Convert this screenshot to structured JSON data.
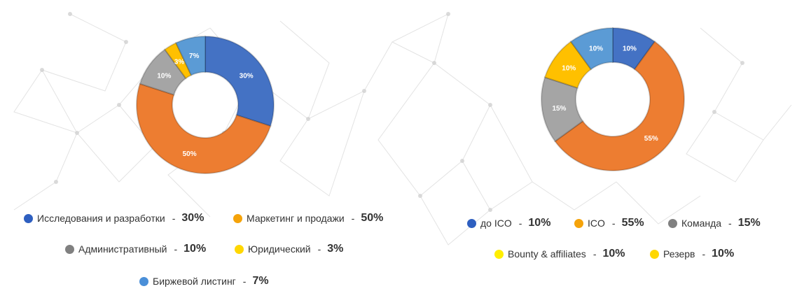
{
  "chart_data": [
    {
      "type": "pie",
      "categories": [
        "Исследования и разработки",
        "Маркетинг и продажи",
        "Административный",
        "Юридический",
        "Биржевой листинг"
      ],
      "values": [
        30,
        50,
        10,
        3,
        7
      ],
      "labels": [
        "30%",
        "50%",
        "10%",
        "3%",
        "7%"
      ],
      "legend_values": [
        "30%",
        "50%",
        "10%",
        "3%",
        "7%"
      ],
      "colors": [
        "#4472C4",
        "#ED7D31",
        "#A5A5A5",
        "#FFC000",
        "#5B9BD5"
      ],
      "legend_colors": [
        "#2E5FC0",
        "#F5A30A",
        "#808080",
        "#FFD700",
        "#4A8FD8"
      ],
      "legend": "bottom"
    },
    {
      "type": "pie",
      "categories": [
        "до ICO",
        "ICO",
        "Команда",
        "Bounty & affiliates",
        "Резерв"
      ],
      "values": [
        10,
        55,
        15,
        10,
        10
      ],
      "labels": [
        "10%",
        "55%",
        "15%",
        "10%",
        "10%"
      ],
      "legend_values": [
        "10%",
        "55%",
        "15%",
        "10%",
        "10%"
      ],
      "colors": [
        "#4472C4",
        "#ED7D31",
        "#A5A5A5",
        "#FFC000",
        "#5B9BD5"
      ],
      "legend_colors": [
        "#2E5FC0",
        "#F5A30A",
        "#808080",
        "#FFEE00",
        "#FFD700"
      ],
      "legend": "bottom"
    }
  ]
}
